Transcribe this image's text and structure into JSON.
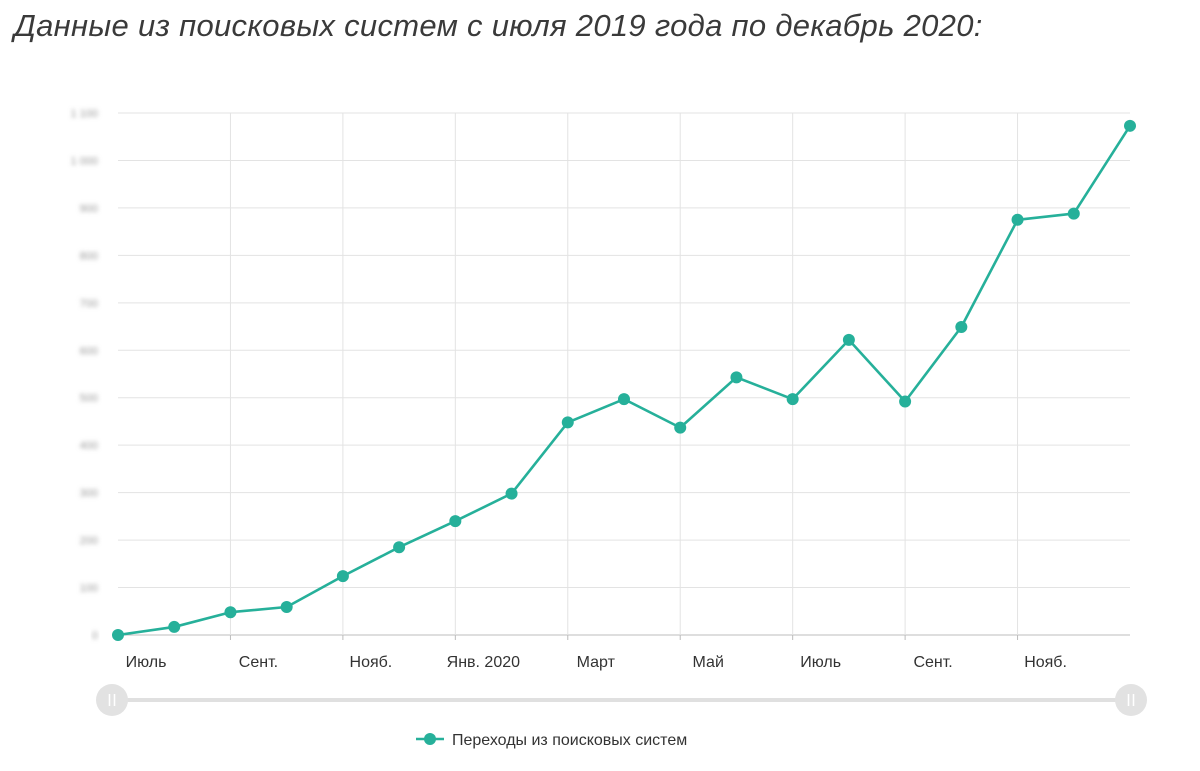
{
  "title": "Данные из поисковых систем с июля 2019 года по декабрь 2020:",
  "chart_data": {
    "type": "line",
    "title": "Данные из поисковых систем с июля 2019 года по декабрь 2020:",
    "x_tick_labels": [
      "Июль",
      "Сент.",
      "Нояб.",
      "Янв. 2020",
      "Март",
      "Май",
      "Июль",
      "Сент.",
      "Нояб."
    ],
    "x": [
      "2019-07",
      "2019-08",
      "2019-09",
      "2019-10",
      "2019-11",
      "2019-12",
      "2020-01",
      "2020-02",
      "2020-03",
      "2020-04",
      "2020-05",
      "2020-06",
      "2020-07",
      "2020-08",
      "2020-09",
      "2020-10",
      "2020-11",
      "2020-12",
      "2021-01"
    ],
    "series": [
      {
        "name": "Переходы из поисковых систем",
        "color": "#26b09a",
        "values": [
          0,
          17,
          48,
          59,
          124,
          185,
          240,
          298,
          448,
          497,
          437,
          543,
          497,
          622,
          492,
          649,
          875,
          888,
          1073
        ]
      }
    ],
    "y_tick_labels": [
      "0",
      "100",
      "200",
      "300",
      "400",
      "500",
      "600",
      "700",
      "800",
      "900",
      "1 000",
      "1 100"
    ],
    "ylim": [
      0,
      1100
    ],
    "grid": true,
    "legend_position": "bottom-center",
    "range_slider": true
  }
}
